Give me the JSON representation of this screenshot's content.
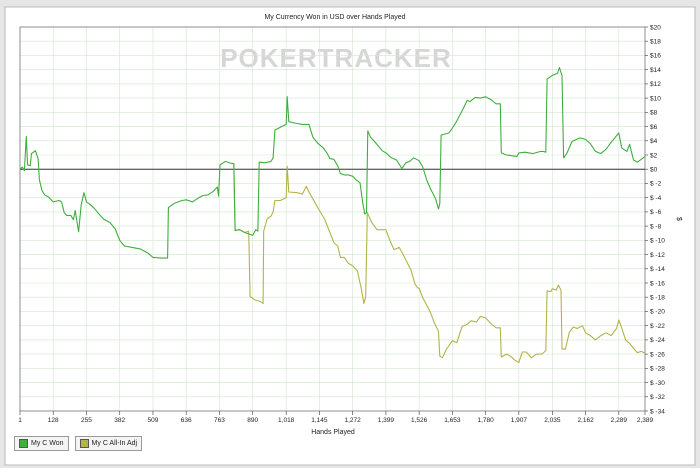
{
  "chart_data": {
    "type": "line",
    "title": "My Currency Won in USD over Hands Played",
    "xlabel": "Hands Played",
    "ylabel": "$",
    "watermark": "POKERTRACKER",
    "xlim": [
      1,
      2389
    ],
    "ylim": [
      -34,
      20
    ],
    "x_ticks": [
      1,
      128,
      255,
      382,
      509,
      636,
      763,
      890,
      1018,
      1145,
      1272,
      1399,
      1526,
      1653,
      1780,
      1907,
      2035,
      2162,
      2289,
      2389
    ],
    "x_tick_labels": [
      "1",
      "128",
      "255",
      "382",
      "509",
      "636",
      "763",
      "890",
      "1,018",
      "1,145",
      "1,272",
      "1,399",
      "1,526",
      "1,653",
      "1,780",
      "1,907",
      "2,035",
      "2,162",
      "2,289",
      "2,389"
    ],
    "y_ticks": [
      20,
      18,
      16,
      14,
      12,
      10,
      8,
      6,
      4,
      2,
      0,
      -2,
      -4,
      -6,
      -8,
      -10,
      -12,
      -14,
      -16,
      -18,
      -20,
      -22,
      -24,
      -26,
      -28,
      -30,
      -32,
      -34
    ],
    "y_tick_labels": [
      "$20",
      "$18",
      "$16",
      "$14",
      "$12",
      "$10",
      "$8",
      "$6",
      "$4",
      "$2",
      "$0",
      "$ -2",
      "$ -4",
      "$ -6",
      "$ -8",
      "$ -10",
      "$ -12",
      "$ -14",
      "$ -16",
      "$ -18",
      "$ -20",
      "$ -22",
      "$ -24",
      "$ -26",
      "$ -28",
      "$ -30",
      "$ -32",
      "$ -34"
    ],
    "grid": true,
    "legend_position": "bottom-left",
    "series": [
      {
        "name": "My C Won",
        "color": "#3fae3f",
        "points": [
          [
            1,
            0
          ],
          [
            10,
            0.3
          ],
          [
            18,
            -0.2
          ],
          [
            25,
            4.6
          ],
          [
            30,
            0.6
          ],
          [
            40,
            0.5
          ],
          [
            45,
            2.2
          ],
          [
            60,
            2.6
          ],
          [
            70,
            1.5
          ],
          [
            75,
            -1.5
          ],
          [
            85,
            -3.0
          ],
          [
            95,
            -3.6
          ],
          [
            110,
            -3.9
          ],
          [
            128,
            -4.6
          ],
          [
            150,
            -4.4
          ],
          [
            160,
            -4.6
          ],
          [
            170,
            -6.1
          ],
          [
            180,
            -6.5
          ],
          [
            195,
            -6.5
          ],
          [
            205,
            -7.1
          ],
          [
            212,
            -5.8
          ],
          [
            225,
            -8.8
          ],
          [
            235,
            -5.0
          ],
          [
            245,
            -3.3
          ],
          [
            255,
            -4.6
          ],
          [
            270,
            -5.0
          ],
          [
            285,
            -5.5
          ],
          [
            300,
            -6.2
          ],
          [
            320,
            -7.0
          ],
          [
            345,
            -7.5
          ],
          [
            365,
            -8.4
          ],
          [
            382,
            -10.0
          ],
          [
            400,
            -10.8
          ],
          [
            430,
            -11.0
          ],
          [
            460,
            -11.2
          ],
          [
            490,
            -11.8
          ],
          [
            509,
            -12.4
          ],
          [
            545,
            -12.5
          ],
          [
            565,
            -12.5
          ],
          [
            568,
            -5.4
          ],
          [
            590,
            -4.8
          ],
          [
            620,
            -4.4
          ],
          [
            636,
            -4.3
          ],
          [
            660,
            -4.6
          ],
          [
            680,
            -4.1
          ],
          [
            700,
            -3.7
          ],
          [
            720,
            -3.6
          ],
          [
            740,
            -3.1
          ],
          [
            755,
            -2.5
          ],
          [
            760,
            -3.8
          ],
          [
            765,
            0.6
          ],
          [
            785,
            1.1
          ],
          [
            810,
            0.8
          ],
          [
            818,
            0.8
          ],
          [
            823,
            -8.6
          ],
          [
            840,
            -8.5
          ],
          [
            860,
            -8.9
          ],
          [
            890,
            -9.3
          ],
          [
            902,
            -8.5
          ],
          [
            910,
            -8.7
          ],
          [
            915,
            1.0
          ],
          [
            935,
            0.9
          ],
          [
            960,
            1.1
          ],
          [
            968,
            1.6
          ],
          [
            975,
            5.5
          ],
          [
            1000,
            6.0
          ],
          [
            1018,
            6.3
          ],
          [
            1022,
            10.2
          ],
          [
            1028,
            6.7
          ],
          [
            1050,
            6.5
          ],
          [
            1080,
            6.3
          ],
          [
            1105,
            6.3
          ],
          [
            1120,
            4.5
          ],
          [
            1140,
            3.6
          ],
          [
            1160,
            3.0
          ],
          [
            1175,
            2.2
          ],
          [
            1185,
            1.5
          ],
          [
            1200,
            1.4
          ],
          [
            1215,
            0.5
          ],
          [
            1225,
            -0.6
          ],
          [
            1240,
            -0.8
          ],
          [
            1255,
            -0.8
          ],
          [
            1272,
            -1.0
          ],
          [
            1285,
            -1.5
          ],
          [
            1300,
            -1.9
          ],
          [
            1310,
            -4.6
          ],
          [
            1318,
            -6.3
          ],
          [
            1325,
            -6.1
          ],
          [
            1330,
            5.4
          ],
          [
            1340,
            4.5
          ],
          [
            1360,
            3.7
          ],
          [
            1385,
            2.6
          ],
          [
            1399,
            2.3
          ],
          [
            1420,
            1.6
          ],
          [
            1440,
            1.3
          ],
          [
            1460,
            0.1
          ],
          [
            1475,
            0.9
          ],
          [
            1490,
            1.1
          ],
          [
            1505,
            1.6
          ],
          [
            1526,
            1.2
          ],
          [
            1540,
            0.3
          ],
          [
            1555,
            -1.5
          ],
          [
            1570,
            -2.8
          ],
          [
            1580,
            -3.5
          ],
          [
            1590,
            -4.3
          ],
          [
            1600,
            -5.6
          ],
          [
            1605,
            -4.8
          ],
          [
            1610,
            4.8
          ],
          [
            1620,
            4.9
          ],
          [
            1640,
            5.1
          ],
          [
            1653,
            5.8
          ],
          [
            1670,
            6.8
          ],
          [
            1690,
            8.2
          ],
          [
            1710,
            9.7
          ],
          [
            1720,
            9.5
          ],
          [
            1740,
            10.1
          ],
          [
            1760,
            10.0
          ],
          [
            1780,
            10.2
          ],
          [
            1800,
            9.8
          ],
          [
            1820,
            9.2
          ],
          [
            1836,
            9.2
          ],
          [
            1840,
            2.3
          ],
          [
            1860,
            2.0
          ],
          [
            1880,
            1.9
          ],
          [
            1900,
            1.8
          ],
          [
            1907,
            2.3
          ],
          [
            1930,
            2.4
          ],
          [
            1960,
            2.2
          ],
          [
            1990,
            2.5
          ],
          [
            2000,
            2.5
          ],
          [
            2010,
            2.4
          ],
          [
            2015,
            12.7
          ],
          [
            2035,
            13.2
          ],
          [
            2055,
            13.5
          ],
          [
            2062,
            14.3
          ],
          [
            2072,
            13.2
          ],
          [
            2078,
            1.6
          ],
          [
            2090,
            2.2
          ],
          [
            2110,
            3.9
          ],
          [
            2140,
            4.4
          ],
          [
            2162,
            4.2
          ],
          [
            2180,
            3.6
          ],
          [
            2200,
            2.5
          ],
          [
            2220,
            2.2
          ],
          [
            2240,
            2.8
          ],
          [
            2260,
            3.8
          ],
          [
            2289,
            5.1
          ],
          [
            2300,
            3.0
          ],
          [
            2320,
            2.5
          ],
          [
            2330,
            3.5
          ],
          [
            2345,
            1.3
          ],
          [
            2360,
            1.0
          ],
          [
            2375,
            1.4
          ],
          [
            2389,
            1.8
          ]
        ]
      },
      {
        "name": "My C All-In Adj",
        "color": "#b3b34a",
        "points": [
          [
            818,
            0.8
          ],
          [
            823,
            -8.6
          ],
          [
            840,
            -8.5
          ],
          [
            860,
            -8.9
          ],
          [
            875,
            -8.7
          ],
          [
            880,
            -17.9
          ],
          [
            900,
            -18.4
          ],
          [
            920,
            -18.6
          ],
          [
            930,
            -18.9
          ],
          [
            932,
            -8.7
          ],
          [
            945,
            -7.0
          ],
          [
            960,
            -6.6
          ],
          [
            968,
            -6.0
          ],
          [
            975,
            -4.4
          ],
          [
            995,
            -4.4
          ],
          [
            1018,
            -4.0
          ],
          [
            1022,
            0.4
          ],
          [
            1028,
            -3.2
          ],
          [
            1060,
            -3.3
          ],
          [
            1080,
            -3.5
          ],
          [
            1095,
            -2.4
          ],
          [
            1105,
            -3.2
          ],
          [
            1125,
            -4.5
          ],
          [
            1145,
            -5.8
          ],
          [
            1165,
            -7.0
          ],
          [
            1185,
            -8.9
          ],
          [
            1200,
            -10.3
          ],
          [
            1215,
            -10.8
          ],
          [
            1225,
            -12.4
          ],
          [
            1240,
            -12.4
          ],
          [
            1255,
            -13.2
          ],
          [
            1272,
            -13.6
          ],
          [
            1290,
            -14.3
          ],
          [
            1305,
            -16.8
          ],
          [
            1315,
            -18.9
          ],
          [
            1322,
            -17.9
          ],
          [
            1328,
            -6.1
          ],
          [
            1345,
            -7.5
          ],
          [
            1365,
            -8.5
          ],
          [
            1385,
            -8.5
          ],
          [
            1399,
            -8.5
          ],
          [
            1415,
            -10.1
          ],
          [
            1430,
            -11.3
          ],
          [
            1450,
            -11.0
          ],
          [
            1465,
            -12.0
          ],
          [
            1480,
            -13.1
          ],
          [
            1495,
            -14.2
          ],
          [
            1510,
            -16.1
          ],
          [
            1520,
            -16.7
          ],
          [
            1526,
            -16.7
          ],
          [
            1540,
            -18.1
          ],
          [
            1555,
            -19.1
          ],
          [
            1570,
            -20.2
          ],
          [
            1585,
            -21.7
          ],
          [
            1600,
            -22.8
          ],
          [
            1605,
            -26.3
          ],
          [
            1615,
            -26.5
          ],
          [
            1630,
            -25.3
          ],
          [
            1640,
            -24.8
          ],
          [
            1653,
            -24.1
          ],
          [
            1670,
            -24.4
          ],
          [
            1690,
            -22.1
          ],
          [
            1710,
            -21.8
          ],
          [
            1725,
            -21.3
          ],
          [
            1745,
            -21.5
          ],
          [
            1760,
            -20.7
          ],
          [
            1780,
            -20.9
          ],
          [
            1800,
            -21.7
          ],
          [
            1820,
            -22.3
          ],
          [
            1836,
            -22.3
          ],
          [
            1840,
            -26.4
          ],
          [
            1860,
            -26.0
          ],
          [
            1875,
            -26.3
          ],
          [
            1890,
            -26.8
          ],
          [
            1907,
            -27.2
          ],
          [
            1920,
            -25.7
          ],
          [
            1935,
            -25.7
          ],
          [
            1955,
            -26.5
          ],
          [
            1975,
            -26.0
          ],
          [
            1995,
            -26.0
          ],
          [
            2010,
            -25.5
          ],
          [
            2015,
            -17.1
          ],
          [
            2030,
            -17.2
          ],
          [
            2035,
            -16.8
          ],
          [
            2050,
            -17.0
          ],
          [
            2058,
            -16.3
          ],
          [
            2068,
            -17.0
          ],
          [
            2072,
            -25.3
          ],
          [
            2085,
            -25.3
          ],
          [
            2100,
            -22.9
          ],
          [
            2115,
            -22.2
          ],
          [
            2130,
            -22.4
          ],
          [
            2150,
            -22.0
          ],
          [
            2162,
            -23.0
          ],
          [
            2180,
            -23.4
          ],
          [
            2200,
            -24.0
          ],
          [
            2220,
            -23.4
          ],
          [
            2240,
            -23.0
          ],
          [
            2260,
            -23.4
          ],
          [
            2280,
            -22.4
          ],
          [
            2289,
            -21.2
          ],
          [
            2300,
            -22.3
          ],
          [
            2315,
            -24.0
          ],
          [
            2330,
            -24.5
          ],
          [
            2345,
            -25.2
          ],
          [
            2360,
            -25.8
          ],
          [
            2375,
            -25.6
          ],
          [
            2389,
            -25.9
          ]
        ]
      }
    ]
  }
}
